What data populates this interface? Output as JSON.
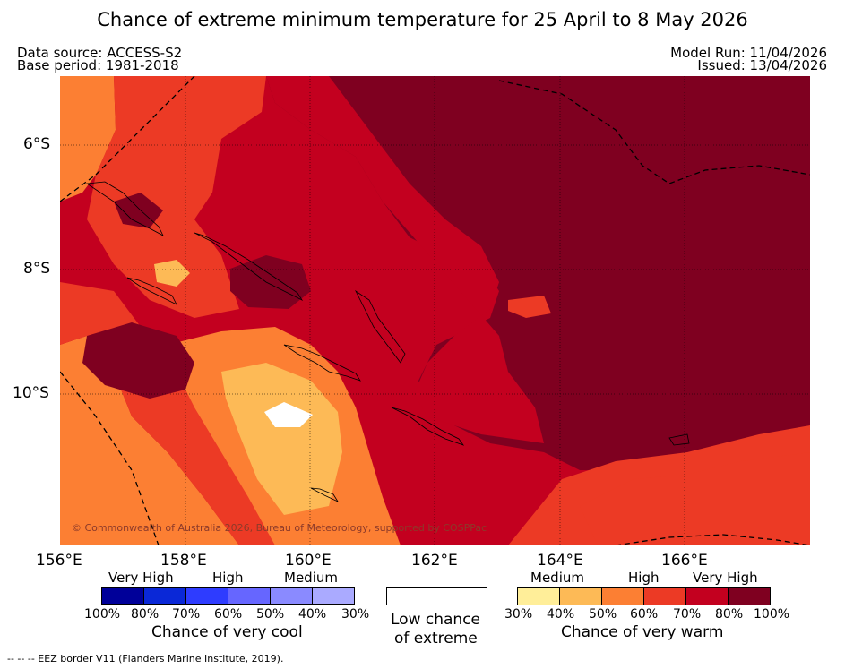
{
  "title": "Chance of extreme minimum temperature for 25 April to 8 May 2026",
  "header": {
    "data_source": "Data source: ACCESS-S2",
    "base_period": "Base period: 1981-2018",
    "model_run": "Model Run: 11/04/2026",
    "issued": "Issued: 13/04/2026"
  },
  "map": {
    "lat_labels": [
      "6°S",
      "8°S",
      "10°S"
    ],
    "lon_labels": [
      "156°E",
      "158°E",
      "160°E",
      "162°E",
      "164°E",
      "166°E"
    ],
    "copyright": "© Commonwealth of Australia 2026, Bureau of Meteorology, supported by COSPPac"
  },
  "legend": {
    "cool": {
      "heads": [
        "Very High",
        "High",
        "Medium"
      ],
      "ticks": [
        "100%",
        "80%",
        "70%",
        "60%",
        "50%",
        "40%",
        "30%"
      ],
      "colors": [
        "#000099",
        "#0a28d7",
        "#2e3cff",
        "#6666ff",
        "#8a8aff",
        "#aaaaff"
      ],
      "title": "Chance of very cool"
    },
    "low": {
      "title_line1": "Low chance",
      "title_line2": "of extreme"
    },
    "warm": {
      "heads": [
        "Medium",
        "High",
        "Very High"
      ],
      "ticks": [
        "30%",
        "40%",
        "50%",
        "60%",
        "70%",
        "80%",
        "100%"
      ],
      "colors": [
        "#ffee99",
        "#fdba56",
        "#fc7f33",
        "#ec3a25",
        "#c3001f",
        "#7f0020"
      ],
      "title": "Chance of very warm"
    }
  },
  "footer": "-- -- -- EEZ border V11 (Flanders Marine Institute, 2019)."
}
